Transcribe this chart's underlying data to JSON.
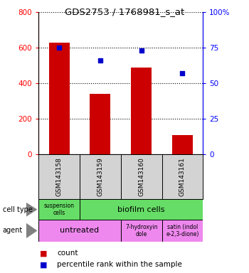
{
  "title": "GDS2753 / 1768981_s_at",
  "samples": [
    "GSM143158",
    "GSM143159",
    "GSM143160",
    "GSM143161"
  ],
  "counts": [
    630,
    340,
    490,
    108
  ],
  "percentiles": [
    75,
    66,
    73,
    57
  ],
  "left_ylim": [
    0,
    800
  ],
  "right_ylim": [
    0,
    100
  ],
  "left_yticks": [
    0,
    200,
    400,
    600,
    800
  ],
  "right_yticks": [
    0,
    25,
    50,
    75,
    100
  ],
  "right_yticklabels": [
    "0",
    "25",
    "50",
    "75",
    "100%"
  ],
  "bar_color": "#cc0000",
  "dot_color": "#0000cc",
  "bar_width": 0.5,
  "sample_bg_color": "#d3d3d3",
  "suspension_color": "#66dd66",
  "biofilm_color": "#66dd66",
  "untreated_color": "#ee88ee",
  "treated_color": "#ee88ee",
  "legend_count_color": "#cc0000",
  "legend_pct_color": "#0000cc",
  "fig_width": 3.5,
  "fig_height": 3.84,
  "dpi": 100
}
